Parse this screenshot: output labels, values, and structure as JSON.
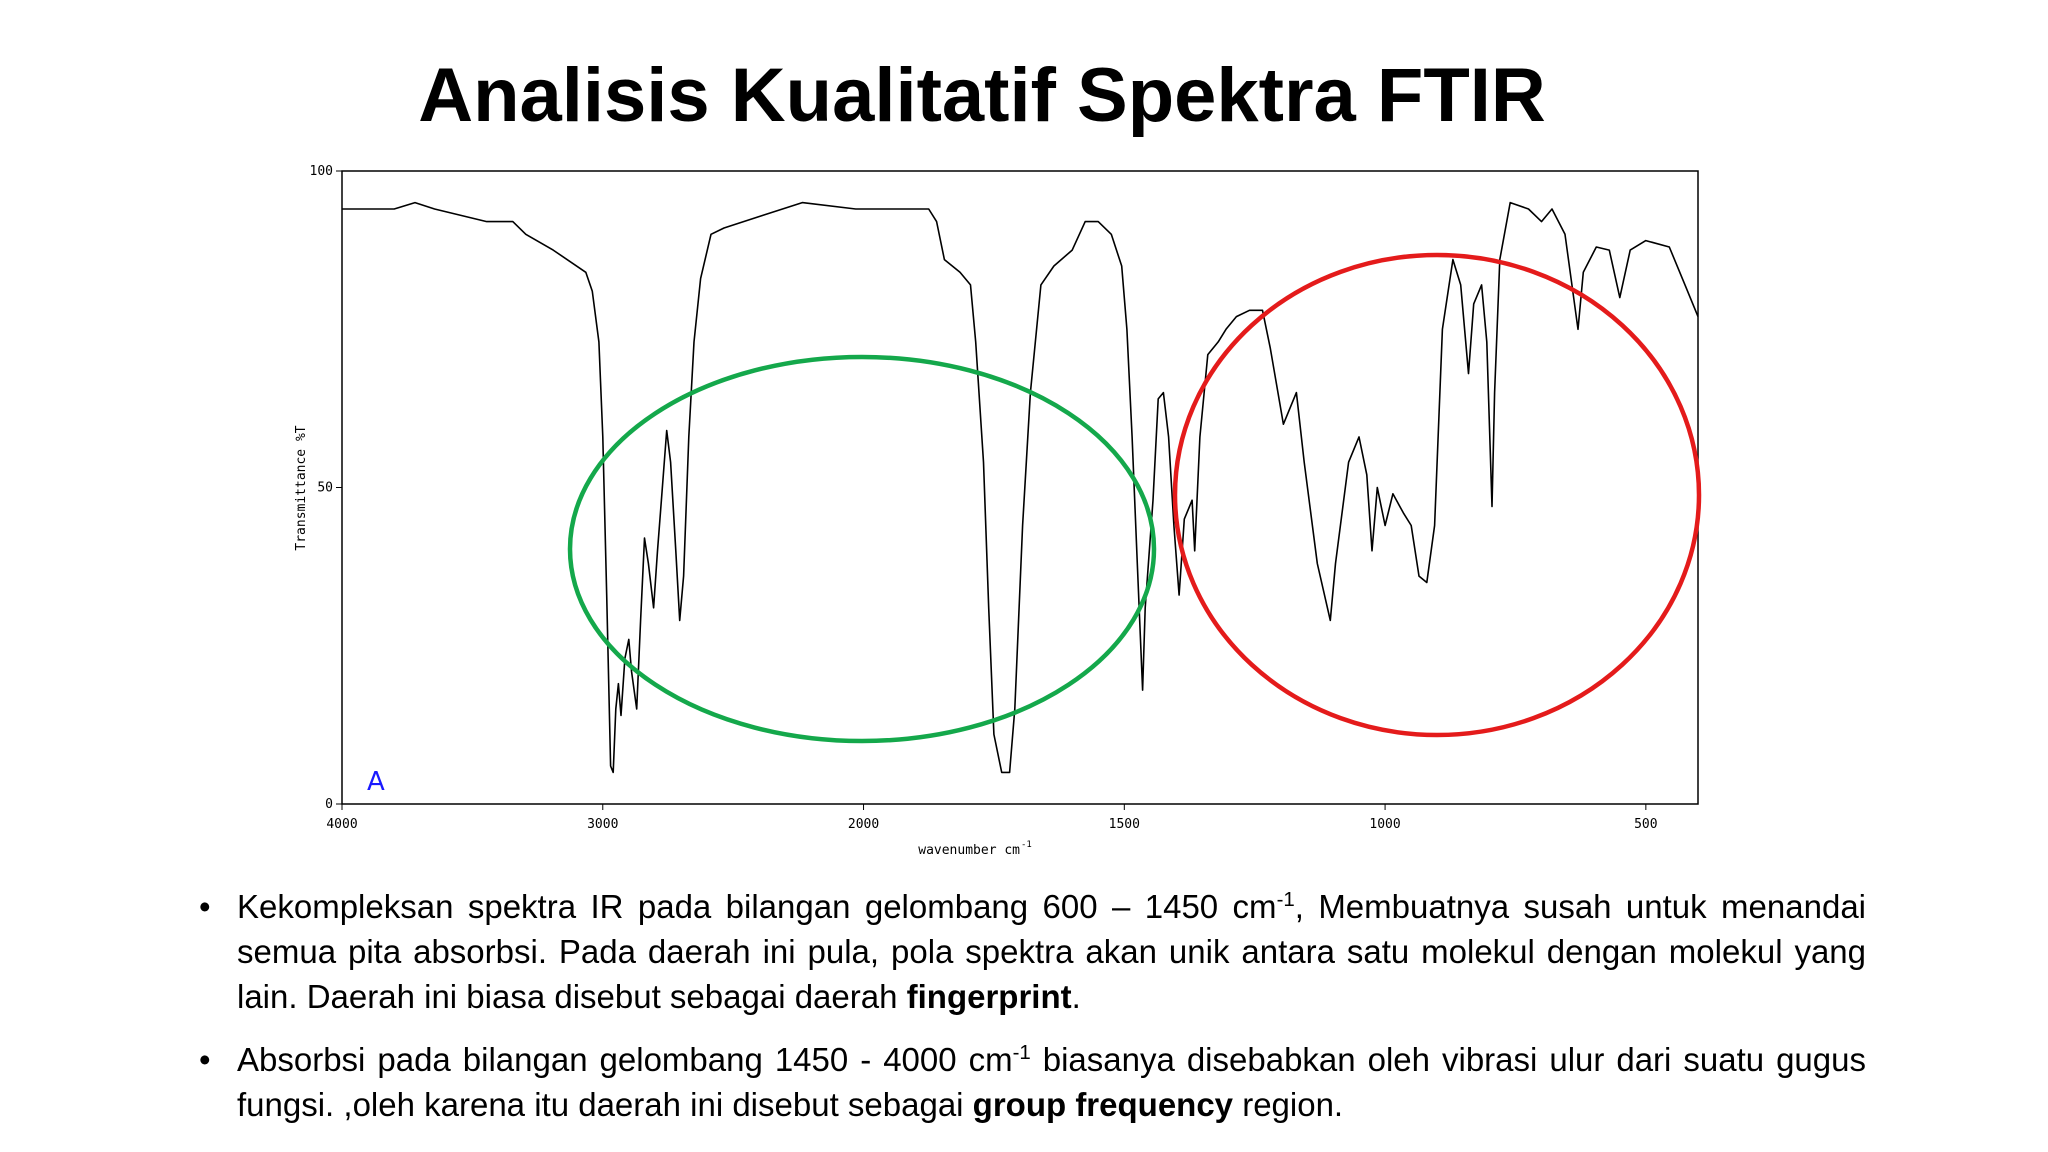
{
  "chart_data": {
    "type": "line",
    "title": "Analisis Kualitatif Spektra FTIR",
    "ylabel": "Transmittance %T",
    "xlabel": "wavenumber cm",
    "xlabel_sup": "-1",
    "annotation": "A",
    "color": "#000000",
    "xlim": [
      4000,
      400
    ],
    "xbreak": 2000,
    "xticks": [
      4000,
      3000,
      2000,
      1500,
      1000,
      500
    ],
    "ylim": [
      0,
      100
    ],
    "yticks": [
      0,
      50,
      100
    ],
    "x": [
      4000,
      3800,
      3720,
      3645,
      3445,
      3345,
      3295,
      3190,
      3065,
      3040,
      3015,
      3000,
      2985,
      2970,
      2960,
      2950,
      2940,
      2930,
      2915,
      2900,
      2890,
      2870,
      2855,
      2840,
      2825,
      2805,
      2790,
      2775,
      2755,
      2740,
      2720,
      2705,
      2690,
      2670,
      2650,
      2625,
      2585,
      2535,
      2385,
      2235,
      2030,
      1940,
      1875,
      1860,
      1845,
      1815,
      1795,
      1785,
      1770,
      1760,
      1750,
      1735,
      1720,
      1710,
      1695,
      1680,
      1660,
      1635,
      1600,
      1575,
      1550,
      1525,
      1505,
      1495,
      1485,
      1475,
      1465,
      1460,
      1445,
      1435,
      1425,
      1415,
      1405,
      1395,
      1385,
      1370,
      1365,
      1355,
      1340,
      1320,
      1305,
      1285,
      1260,
      1235,
      1220,
      1195,
      1180,
      1170,
      1155,
      1130,
      1105,
      1095,
      1070,
      1050,
      1035,
      1025,
      1015,
      1000,
      985,
      965,
      950,
      935,
      920,
      905,
      890,
      870,
      855,
      840,
      830,
      815,
      805,
      795,
      790,
      780,
      760,
      725,
      700,
      680,
      655,
      640,
      630,
      620,
      595,
      570,
      550,
      530,
      500,
      455,
      425,
      400
    ],
    "values": [
      94,
      94,
      95,
      94,
      92,
      92,
      90,
      87.5,
      84,
      81,
      73,
      58,
      33,
      6,
      5,
      15,
      19,
      14,
      23,
      26,
      21,
      15,
      29,
      42,
      38,
      31,
      40,
      48,
      59,
      54,
      40,
      29,
      36,
      58,
      73,
      83,
      90,
      91,
      93,
      95,
      94,
      94,
      94,
      92,
      86,
      84,
      82,
      73,
      54,
      31,
      11,
      5,
      5,
      15,
      44,
      65,
      82,
      85,
      87.5,
      92,
      92,
      90,
      85,
      75,
      58,
      38,
      18,
      31,
      48,
      64,
      65,
      58,
      44,
      33,
      45,
      48,
      40,
      58,
      71,
      73,
      75,
      77,
      78,
      78,
      72,
      60,
      63,
      65,
      54,
      38,
      29,
      38,
      54,
      58,
      52,
      40,
      50,
      44,
      49,
      46,
      44,
      36,
      35,
      44,
      75,
      86,
      82,
      68,
      79,
      82,
      73,
      47,
      65,
      86,
      95,
      94,
      92,
      94,
      90,
      81,
      75,
      84,
      88,
      87.5,
      80,
      87.5,
      89,
      88,
      82,
      77
    ]
  },
  "bullets": [
    {
      "parts": [
        "Kekompleksan spektra IR pada bilangan gelombang 600 – 1450 cm",
        "-1",
        ", Membuatnya susah untuk menandai semua pita absorbsi. Pada daerah ini pula, pola spektra akan unik antara satu molekul dengan molekul yang lain. Daerah ini biasa disebut sebagai daerah ",
        "fingerprint",
        "."
      ]
    },
    {
      "parts": [
        "Absorbsi pada bilangan gelombang 1450 - 4000 cm",
        "-1",
        " biasanya disebabkan oleh vibrasi ulur dari suatu gugus fungsi. ,oleh karena itu daerah ini disebut sebagai ",
        "group frequency",
        " region."
      ]
    }
  ]
}
